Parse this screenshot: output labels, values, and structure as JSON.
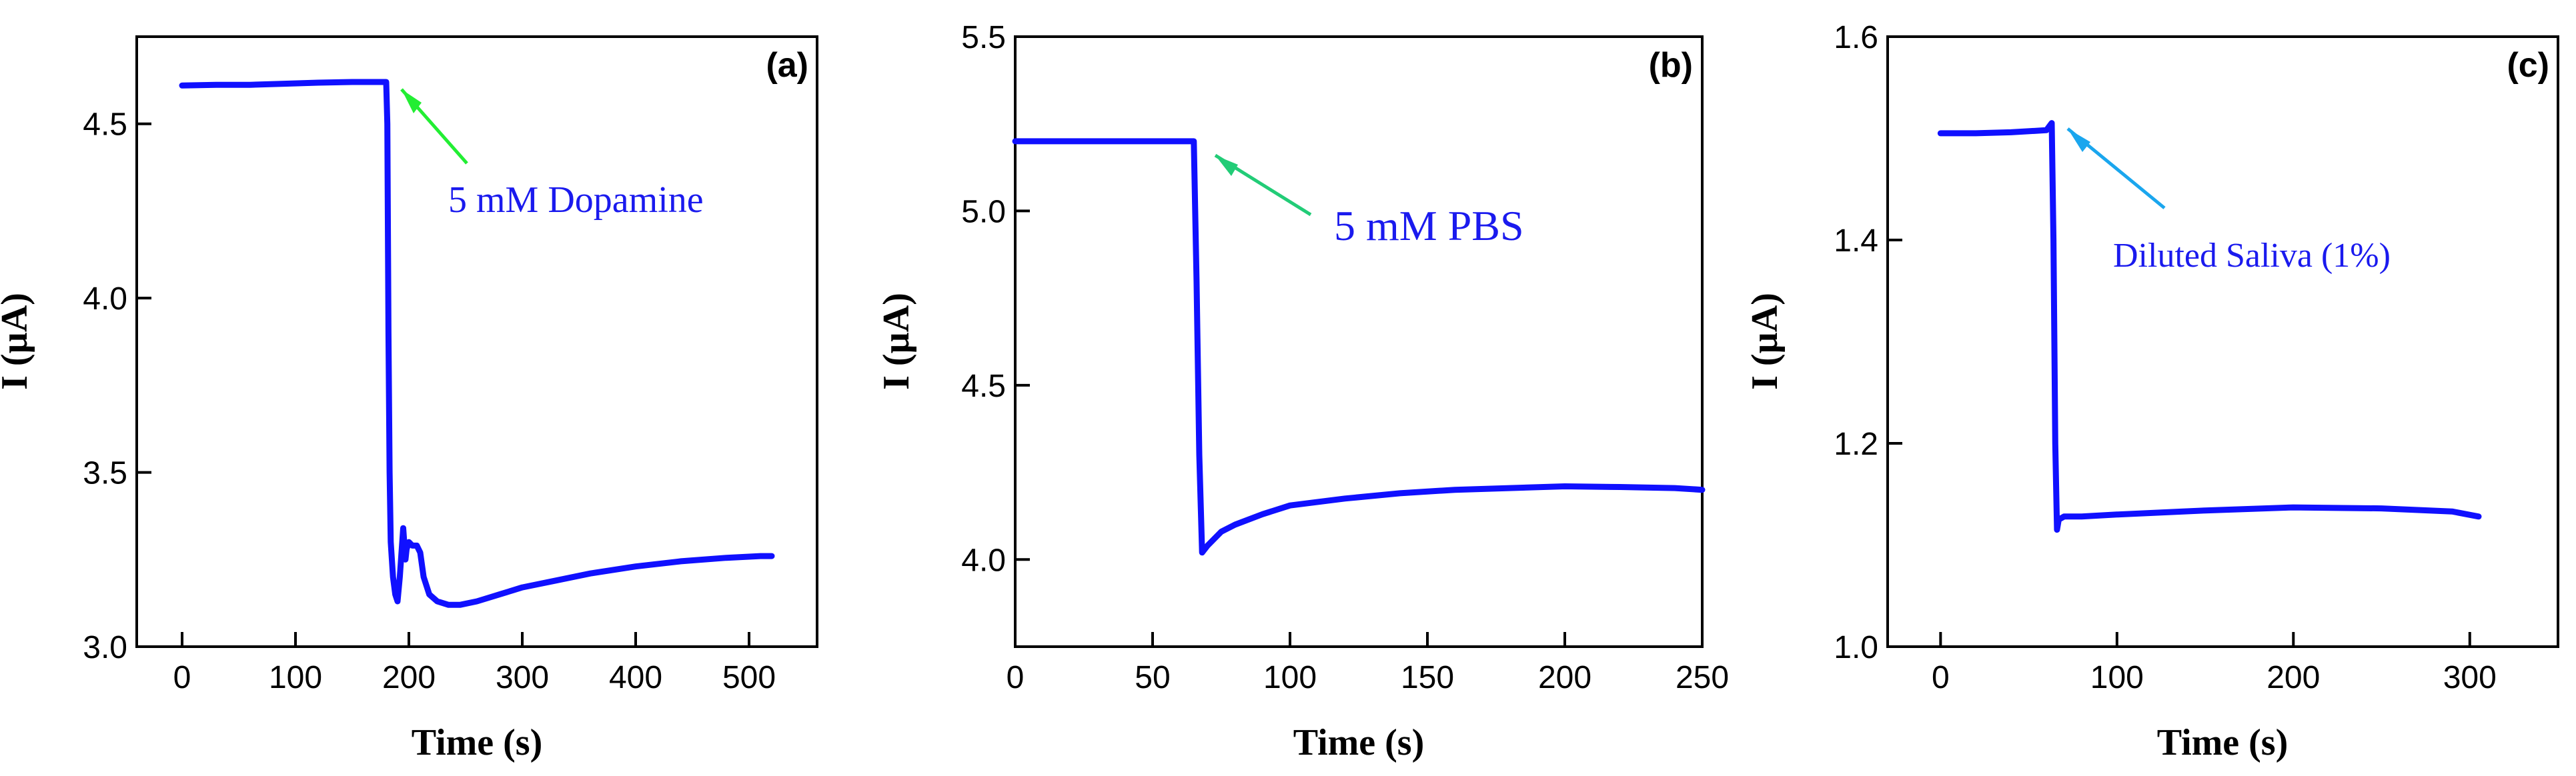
{
  "figure_title": "",
  "colors": {
    "series": "#1010ff",
    "axis": "#000000",
    "arrow_a": "#22ee33",
    "arrow_b": "#22cc77",
    "arrow_c": "#1aa6ee",
    "annotation_text": "#1a1aee"
  },
  "chart_data": [
    {
      "type": "line",
      "panel_label": "(a)",
      "title": "",
      "xlabel": "Time (s)",
      "ylabel": "I (µA)",
      "xlim": [
        -40,
        560
      ],
      "ylim": [
        3.0,
        4.75
      ],
      "xticks": [
        0,
        100,
        200,
        300,
        400,
        500
      ],
      "yticks": [
        3.0,
        3.5,
        4.0,
        4.5
      ],
      "ytick_labels": [
        "3.0",
        "3.5",
        "4.0",
        "4.5"
      ],
      "annotation": {
        "text": "5 mM Dopamine",
        "x": 183,
        "y": 4.62,
        "arrow_color_key": "arrow_a"
      },
      "series": [
        {
          "name": "I",
          "x": [
            0,
            30,
            60,
            90,
            120,
            150,
            175,
            180,
            181,
            182,
            183,
            184,
            186,
            188,
            190,
            192,
            195,
            197,
            198,
            200,
            203,
            207,
            210,
            213,
            218,
            225,
            235,
            245,
            260,
            280,
            300,
            330,
            360,
            400,
            440,
            480,
            510,
            520
          ],
          "y": [
            4.61,
            4.612,
            4.612,
            4.615,
            4.618,
            4.62,
            4.62,
            4.62,
            4.5,
            3.9,
            3.5,
            3.3,
            3.2,
            3.15,
            3.13,
            3.2,
            3.34,
            3.25,
            3.28,
            3.3,
            3.29,
            3.29,
            3.27,
            3.2,
            3.15,
            3.13,
            3.12,
            3.12,
            3.13,
            3.15,
            3.17,
            3.19,
            3.21,
            3.23,
            3.245,
            3.255,
            3.26,
            3.26
          ]
        }
      ]
    },
    {
      "type": "line",
      "panel_label": "(b)",
      "title": "",
      "xlabel": "Time (s)",
      "ylabel": "I (µA)",
      "xlim": [
        0,
        250
      ],
      "ylim": [
        3.75,
        5.5
      ],
      "xticks": [
        0,
        50,
        100,
        150,
        200,
        250
      ],
      "yticks": [
        4.0,
        4.5,
        5.0,
        5.5
      ],
      "ytick_labels": [
        "4.0",
        "4.5",
        "5.0",
        "5.5"
      ],
      "annotation": {
        "text": "5 mM PBS",
        "x": 70,
        "y": 5.18,
        "arrow_color_key": "arrow_b"
      },
      "series": [
        {
          "name": "I",
          "x": [
            0,
            20,
            40,
            60,
            65,
            66,
            67,
            68,
            70,
            75,
            80,
            90,
            100,
            120,
            140,
            160,
            180,
            200,
            220,
            240,
            250
          ],
          "y": [
            5.2,
            5.2,
            5.2,
            5.2,
            5.2,
            4.8,
            4.3,
            4.02,
            4.04,
            4.08,
            4.1,
            4.13,
            4.155,
            4.175,
            4.19,
            4.2,
            4.205,
            4.21,
            4.208,
            4.205,
            4.2
          ]
        }
      ]
    },
    {
      "type": "line",
      "panel_label": "(c)",
      "title": "",
      "xlabel": "Time (s)",
      "ylabel": "I (µA)",
      "xlim": [
        -30,
        350
      ],
      "ylim": [
        1.0,
        1.6
      ],
      "xticks": [
        0,
        100,
        200,
        300
      ],
      "yticks": [
        1.0,
        1.2,
        1.4,
        1.6
      ],
      "ytick_labels": [
        "1.0",
        "1.2",
        "1.4",
        "1.6"
      ],
      "annotation": {
        "text": "Diluted Saliva (1%)",
        "x": 68,
        "y": 1.51,
        "arrow_color_key": "arrow_c"
      },
      "series": [
        {
          "name": "I",
          "x": [
            0,
            20,
            40,
            60,
            63,
            64,
            65,
            66,
            67,
            70,
            80,
            100,
            150,
            200,
            250,
            290,
            305
          ],
          "y": [
            1.505,
            1.505,
            1.506,
            1.508,
            1.515,
            1.4,
            1.2,
            1.115,
            1.125,
            1.128,
            1.128,
            1.13,
            1.134,
            1.137,
            1.136,
            1.133,
            1.128
          ]
        }
      ]
    }
  ]
}
